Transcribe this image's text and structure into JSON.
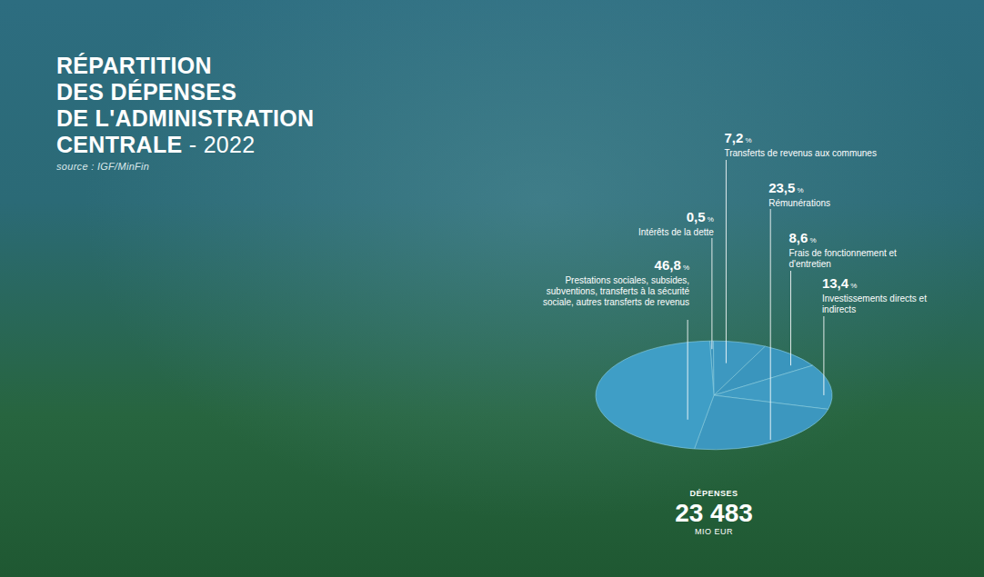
{
  "chart_data": {
    "type": "pie",
    "title": "RÉPARTITION DES DÉPENSES DE L'ADMINISTRATION CENTRALE - 2022",
    "source": "source : IGF/MinFin",
    "categories": [
      "Intérêts de la dette",
      "Transferts de revenus aux communes",
      "Frais de fonctionnement et d'entretien",
      "Investissements directs et indirects",
      "Rémunérations",
      "Prestations sociales, subsides, subventions, transferts à la sécurité sociale, autres transferts de revenus"
    ],
    "values": [
      0.5,
      7.2,
      8.6,
      13.4,
      23.5,
      46.8
    ],
    "value_labels": [
      "0,5 %",
      "7,2 %",
      "8,6 %",
      "13,4 %",
      "23,5 %",
      "46,8 %"
    ],
    "colors": [
      "#3b93bb",
      "#3d98c0",
      "#3a95bd",
      "#3f9bc3",
      "#3c97bf",
      "#3f9ec6"
    ],
    "data_labels": true,
    "total": {
      "label": "DÉPENSES",
      "value": 23483,
      "value_label": "23 483",
      "unit": "MIO EUR"
    }
  }
}
